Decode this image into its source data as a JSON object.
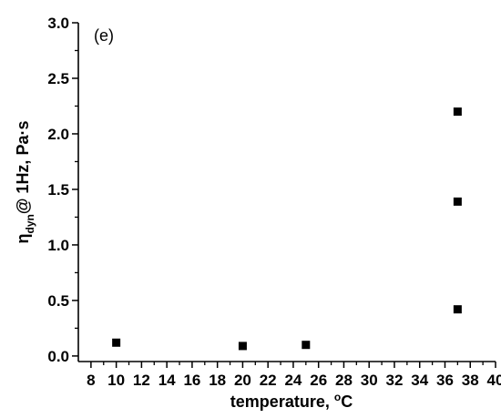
{
  "chart_data": {
    "type": "scatter",
    "panel_label": "(e)",
    "xlabel": {
      "main": "temperature, ",
      "degree": "o",
      "unit": "C"
    },
    "ylabel": {
      "symbol": "η",
      "subscript": "dyn",
      "rest": "@ 1Hz, Pa·s"
    },
    "xlim": [
      7,
      40
    ],
    "ylim": [
      -0.05,
      3.0
    ],
    "xticks": [
      8,
      10,
      12,
      14,
      16,
      18,
      20,
      22,
      24,
      26,
      28,
      30,
      32,
      34,
      36,
      38,
      40
    ],
    "yticks": [
      "0.0",
      "0.5",
      "1.0",
      "1.5",
      "2.0",
      "2.5",
      "3.0"
    ],
    "marker": "square",
    "marker_color": "#000000",
    "grid": false,
    "legend": "none",
    "series": [
      {
        "points": [
          {
            "x": 10,
            "y": 0.12
          },
          {
            "x": 20,
            "y": 0.09
          },
          {
            "x": 25,
            "y": 0.1
          },
          {
            "x": 37,
            "y": 2.2
          },
          {
            "x": 37,
            "y": 1.39
          },
          {
            "x": 37,
            "y": 0.42
          }
        ]
      }
    ]
  }
}
